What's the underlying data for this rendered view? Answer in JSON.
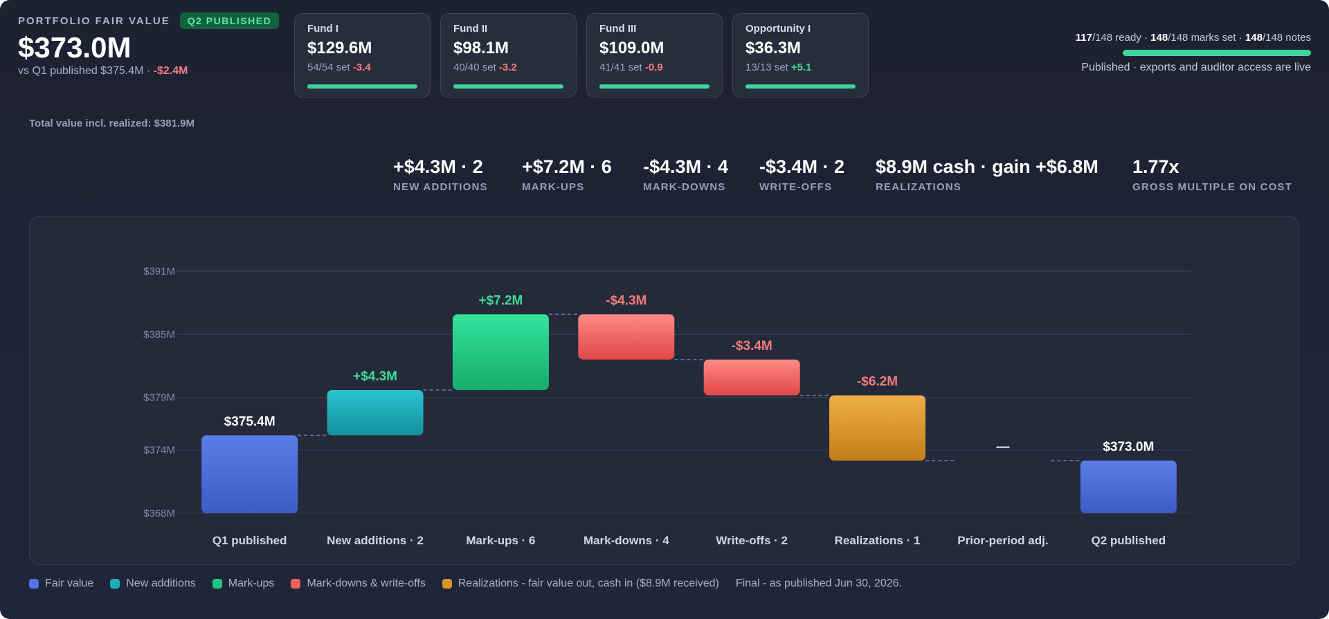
{
  "header": {
    "kicker": "PORTFOLIO FAIR VALUE",
    "badge": "Q2 PUBLISHED",
    "value": "$373.0M",
    "vs_text": "vs Q1 published $375.4M · ",
    "vs_delta": "-$2.4M",
    "total_line": "Total value incl. realized: $381.9M"
  },
  "funds": [
    {
      "name": "Fund I",
      "value": "$129.6M",
      "set": "54/54 set",
      "delta": "-3.4",
      "direction": "neg",
      "progress": 1.0
    },
    {
      "name": "Fund II",
      "value": "$98.1M",
      "set": "40/40 set",
      "delta": "-3.2",
      "direction": "neg",
      "progress": 1.0
    },
    {
      "name": "Fund III",
      "value": "$109.0M",
      "set": "41/41 set",
      "delta": "-0.9",
      "direction": "neg",
      "progress": 1.0
    },
    {
      "name": "Opportunity I",
      "value": "$36.3M",
      "set": "13/13 set",
      "delta": "+5.1",
      "direction": "pos",
      "progress": 1.0
    }
  ],
  "status": {
    "ready_count": "117",
    "ready_text": "/148 ready · ",
    "marks_count": "148",
    "marks_text": "/148 marks set · ",
    "notes_count": "148",
    "notes_text": "/148 notes",
    "progress": 1.0,
    "note": "Published · exports and auditor access are live"
  },
  "stats": [
    {
      "value": "+$4.3M · 2",
      "label": "NEW ADDITIONS"
    },
    {
      "value": "+$7.2M · 6",
      "label": "MARK-UPS"
    },
    {
      "value": "-$4.3M · 4",
      "label": "MARK-DOWNS"
    },
    {
      "value": "-$3.4M · 2",
      "label": "WRITE-OFFS"
    },
    {
      "value": "$8.9M cash · gain +$6.8M",
      "label": "REALIZATIONS"
    },
    {
      "value": "1.77x",
      "label": "GROSS MULTIPLE ON COST"
    }
  ],
  "chart_data": {
    "type": "bar",
    "subtype": "waterfall",
    "ylim": [
      368,
      391
    ],
    "y_ticks": [
      368,
      374,
      379,
      385,
      391
    ],
    "y_tick_labels": [
      "$368M",
      "$374M",
      "$379M",
      "$385M",
      "$391M"
    ],
    "grid": true,
    "categories": [
      "Q1 published",
      "New additions · 2",
      "Mark-ups · 6",
      "Mark-downs · 4",
      "Write-offs · 2",
      "Realizations · 1",
      "Prior-period adj.",
      "Q2 published"
    ],
    "bars": [
      {
        "start": 0,
        "end": 375.4,
        "kind": "total",
        "label": "$375.4M"
      },
      {
        "start": 375.4,
        "end": 379.7,
        "kind": "addition",
        "label": "+$4.3M"
      },
      {
        "start": 379.7,
        "end": 386.9,
        "kind": "markup",
        "label": "+$7.2M"
      },
      {
        "start": 386.9,
        "end": 382.6,
        "kind": "markdown",
        "label": "-$4.3M"
      },
      {
        "start": 382.6,
        "end": 379.2,
        "kind": "markdown",
        "label": "-$3.4M"
      },
      {
        "start": 379.2,
        "end": 373.0,
        "kind": "realization",
        "label": "-$6.2M"
      },
      {
        "start": 373.0,
        "end": 373.0,
        "kind": "none",
        "label": "—"
      },
      {
        "start": 0,
        "end": 373.0,
        "kind": "total",
        "label": "$373.0M"
      }
    ]
  },
  "colors": {
    "total": [
      "#5a7ee8",
      "#3a5cc4"
    ],
    "addition": [
      "#2bc3d0",
      "#13909c"
    ],
    "markup": [
      "#34e39c",
      "#15ad6a"
    ],
    "markdown": [
      "#ff8a85",
      "#e04848"
    ],
    "realization": [
      "#eeaf45",
      "#c27e1a"
    ],
    "pos_label": "#3ddc97",
    "neg_label": "#f27c7c"
  },
  "legend": [
    {
      "label": "Fair value",
      "color": "#4f74de"
    },
    {
      "label": "New additions",
      "color": "#1eaebb"
    },
    {
      "label": "Mark-ups",
      "color": "#22c57f"
    },
    {
      "label": "Mark-downs & write-offs",
      "color": "#f0605c"
    },
    {
      "label": "Realizations - fair value out, cash in ($8.9M received)",
      "color": "#d8952e"
    }
  ],
  "final_note": "Final - as published Jun 30, 2026."
}
